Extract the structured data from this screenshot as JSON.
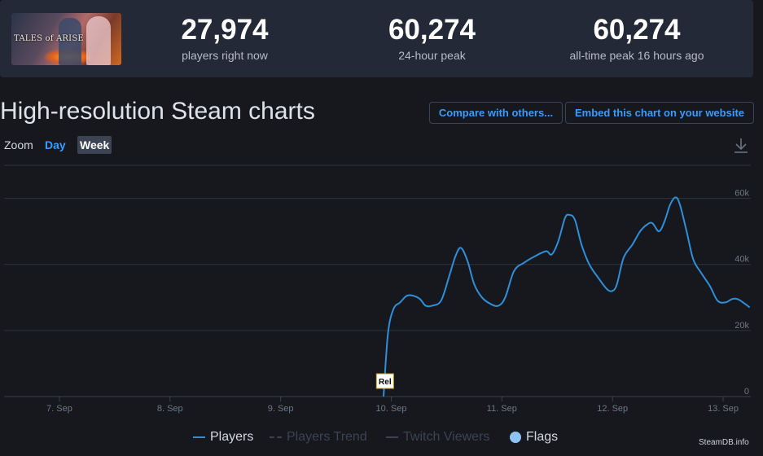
{
  "stats": {
    "game_title": "TALES of ARISE",
    "players_now": "27,974",
    "players_now_label": "players right now",
    "peak_24h": "60,274",
    "peak_24h_label": "24-hour peak",
    "all_time_peak": "60,274",
    "all_time_peak_label": "all-time peak 16 hours ago"
  },
  "header": {
    "title": "High-resolution Steam charts",
    "compare_button": "Compare with others...",
    "embed_button": "Embed this chart on your website"
  },
  "zoom": {
    "label": "Zoom",
    "options": [
      "Day",
      "Week"
    ],
    "selected": "Week"
  },
  "legend": {
    "players": "Players",
    "trend": "Players Trend",
    "twitch": "Twitch Viewers",
    "flags": "Flags"
  },
  "credit": "SteamDB.info",
  "colors": {
    "line": "#2f8fd8",
    "accent": "#3b9bff",
    "grid": "#2d3340",
    "background": "#16181e"
  },
  "chart_data": {
    "type": "line",
    "x_unit": "days",
    "xlim": [
      6.5,
      13.25
    ],
    "ylim": [
      0,
      70000
    ],
    "x_ticks": [
      {
        "label": "7. Sep",
        "x": 7
      },
      {
        "label": "8. Sep",
        "x": 8
      },
      {
        "label": "9. Sep",
        "x": 9
      },
      {
        "label": "10. Sep",
        "x": 10
      },
      {
        "label": "11. Sep",
        "x": 11
      },
      {
        "label": "12. Sep",
        "x": 12
      },
      {
        "label": "13. Sep",
        "x": 13
      }
    ],
    "y_ticks": [
      {
        "label": "0",
        "value": 0
      },
      {
        "label": "20k",
        "value": 20000
      },
      {
        "label": "40k",
        "value": 40000
      },
      {
        "label": "60k",
        "value": 60000
      }
    ],
    "flag": {
      "label": "Rel",
      "x": 9.94
    },
    "grid": true,
    "series": [
      {
        "name": "Players",
        "points": [
          [
            9.93,
            0
          ],
          [
            9.97,
            19000
          ],
          [
            10.02,
            26500
          ],
          [
            10.08,
            28500
          ],
          [
            10.14,
            30500
          ],
          [
            10.2,
            30500
          ],
          [
            10.26,
            29500
          ],
          [
            10.31,
            27500
          ],
          [
            10.37,
            27500
          ],
          [
            10.45,
            29000
          ],
          [
            10.52,
            36000
          ],
          [
            10.58,
            42500
          ],
          [
            10.63,
            45000
          ],
          [
            10.69,
            41000
          ],
          [
            10.75,
            34000
          ],
          [
            10.82,
            30000
          ],
          [
            10.9,
            28000
          ],
          [
            10.97,
            27500
          ],
          [
            11.03,
            30000
          ],
          [
            11.11,
            38000
          ],
          [
            11.2,
            40500
          ],
          [
            11.3,
            42500
          ],
          [
            11.4,
            44000
          ],
          [
            11.45,
            43000
          ],
          [
            11.51,
            47000
          ],
          [
            11.57,
            54000
          ],
          [
            11.61,
            55000
          ],
          [
            11.66,
            53500
          ],
          [
            11.72,
            46000
          ],
          [
            11.79,
            40000
          ],
          [
            11.87,
            36000
          ],
          [
            11.95,
            32500
          ],
          [
            12.0,
            32000
          ],
          [
            12.04,
            34000
          ],
          [
            12.1,
            42000
          ],
          [
            12.18,
            46000
          ],
          [
            12.25,
            50000
          ],
          [
            12.31,
            52000
          ],
          [
            12.36,
            52500
          ],
          [
            12.42,
            50000
          ],
          [
            12.47,
            53000
          ],
          [
            12.52,
            58000
          ],
          [
            12.57,
            60300
          ],
          [
            12.61,
            58000
          ],
          [
            12.67,
            50000
          ],
          [
            12.73,
            41500
          ],
          [
            12.8,
            37500
          ],
          [
            12.88,
            33500
          ],
          [
            12.95,
            29000
          ],
          [
            13.02,
            28500
          ],
          [
            13.08,
            29500
          ],
          [
            13.13,
            29500
          ],
          [
            13.18,
            28500
          ],
          [
            13.24,
            27000
          ]
        ]
      }
    ]
  }
}
